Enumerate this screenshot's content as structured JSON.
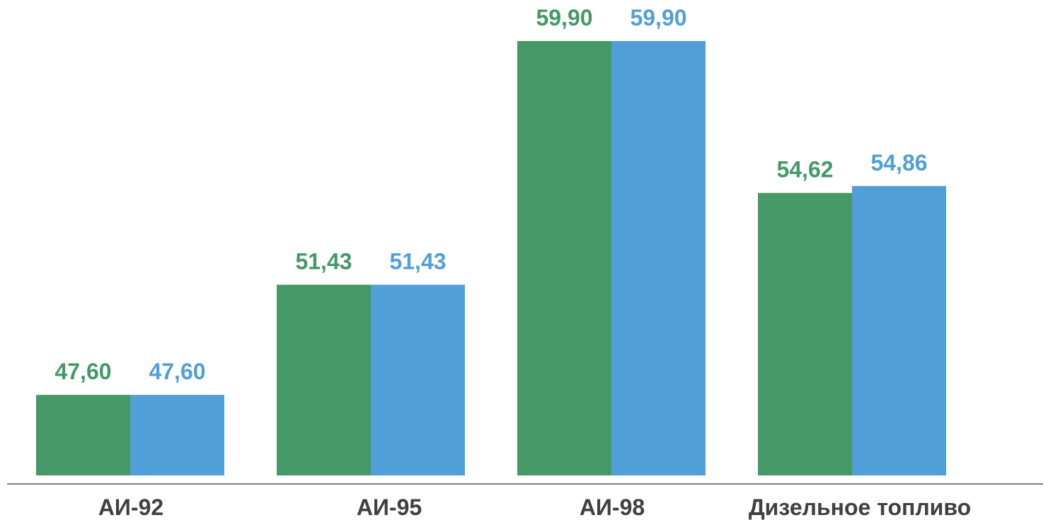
{
  "chart_data": {
    "type": "bar",
    "categories": [
      "АИ-92",
      "АИ-95",
      "АИ-98",
      "Дизельное топливо"
    ],
    "series": [
      {
        "values": [
          47.6,
          51.43,
          59.9,
          54.62
        ],
        "labels": [
          "47,60",
          "51,43",
          "59,90",
          "54,62"
        ],
        "color": "#449966"
      },
      {
        "values": [
          47.6,
          51.43,
          59.9,
          54.86
        ],
        "labels": [
          "47,60",
          "51,43",
          "59,90",
          "54,86"
        ],
        "color": "#519FD8"
      }
    ],
    "title": "",
    "xlabel": "",
    "ylabel": "",
    "ylim": [
      44.8,
      60.8
    ],
    "grid": false,
    "legend": "none",
    "axis_color": "#808080"
  }
}
